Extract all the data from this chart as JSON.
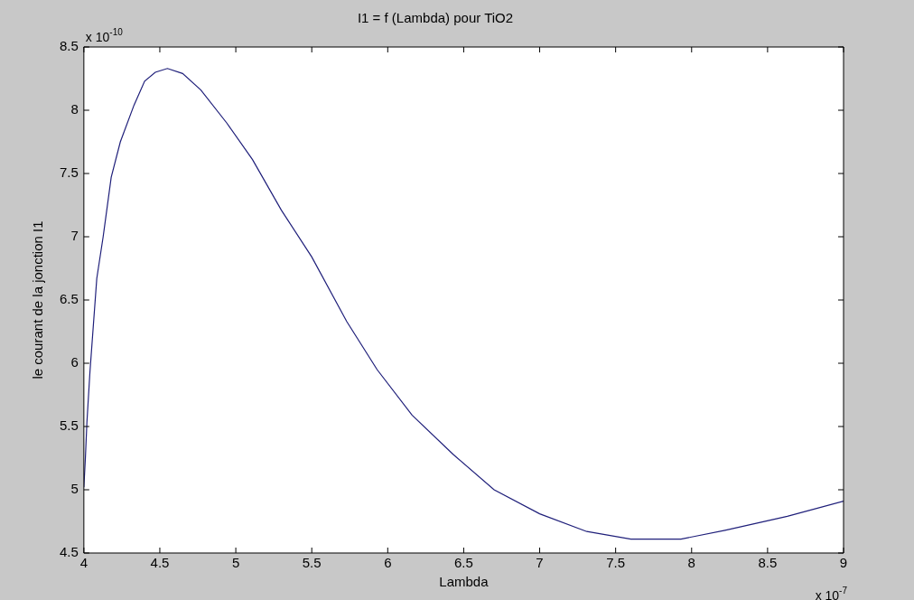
{
  "chart_data": {
    "type": "line",
    "title": "I1 = f (Lambda) pour TiO2",
    "xlabel": "Lambda",
    "ylabel": "le courant de la jonction I1",
    "annotations": [
      "x 10$^{-10}$",
      "x 10$^{-7}$"
    ],
    "x": [
      4.0,
      4.01,
      4.02,
      4.04,
      4.085,
      4.127,
      4.18,
      4.24,
      4.33,
      4.4,
      4.47,
      4.55,
      4.65,
      4.77,
      4.94,
      5.11,
      5.3,
      5.5,
      5.73,
      5.93,
      6.16,
      6.43,
      6.7,
      7.0,
      7.31,
      7.6,
      7.93,
      8.22,
      8.63,
      9.0
    ],
    "series": [
      {
        "color": "#1f1f7a",
        "values": [
          5.02,
          5.25,
          5.53,
          5.93,
          6.67,
          7.0,
          7.47,
          7.75,
          8.04,
          8.23,
          8.3,
          8.33,
          8.29,
          8.16,
          7.9,
          7.61,
          7.21,
          6.84,
          6.33,
          5.95,
          5.59,
          5.28,
          5.0,
          4.81,
          4.67,
          4.61,
          4.61,
          4.68,
          4.79,
          4.91
        ]
      }
    ],
    "xlim": [
      4,
      9
    ],
    "xticks": [
      4,
      4.5,
      5,
      5.5,
      6,
      6.5,
      7,
      7.5,
      8,
      8.5,
      9
    ],
    "ylim": [
      4.5,
      8.5
    ],
    "yticks": [
      4.5,
      5,
      5.5,
      6,
      6.5,
      7,
      7.5,
      8,
      8.5
    ],
    "grid": false,
    "legend": false
  }
}
